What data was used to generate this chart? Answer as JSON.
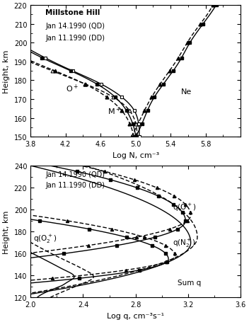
{
  "top": {
    "xlim": [
      3.8,
      6.2
    ],
    "ylim": [
      150,
      220
    ],
    "xlabel": "Log N, cm⁻³",
    "ylabel": "Height, km",
    "title": "Millstone Hill",
    "legend_line1": "Jan 14.1990 (QD)",
    "legend_line2": "Jan 11.1990 (DD)",
    "xticks": [
      3.8,
      4.2,
      4.6,
      5.0,
      5.4,
      5.8
    ],
    "yticks": [
      150,
      160,
      170,
      180,
      190,
      200,
      210,
      220
    ]
  },
  "bottom": {
    "xlim": [
      2.0,
      3.6
    ],
    "ylim": [
      120,
      240
    ],
    "xlabel": "Log q, cm⁻³s⁻¹",
    "ylabel": "Height, km",
    "legend_line1": "Jan 14.1990 (QD)",
    "legend_line2": "Jan 11.1990 (DD)",
    "xticks": [
      2.0,
      2.4,
      2.8,
      3.2,
      3.6
    ],
    "yticks": [
      120,
      140,
      160,
      180,
      200,
      220,
      240
    ]
  }
}
